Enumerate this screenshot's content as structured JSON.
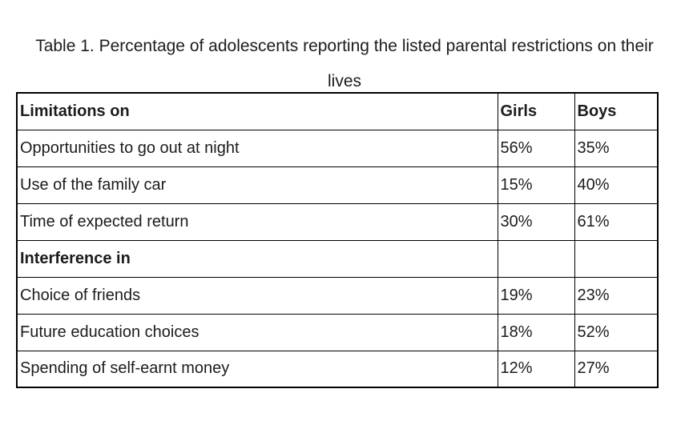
{
  "title": "Table 1. Percentage of adolescents reporting the listed parental restrictions on their lives",
  "table": {
    "headers": [
      "Limitations on",
      "Girls",
      "Boys"
    ],
    "rows": [
      {
        "label": "Opportunities to go out at night",
        "girls": "56%",
        "boys": "35%",
        "section": false
      },
      {
        "label": "Use of the family car",
        "girls": "15%",
        "boys": "40%",
        "section": false
      },
      {
        "label": "Time of expected return",
        "girls": "30%",
        "boys": "61%",
        "section": false
      },
      {
        "label": "Interference in",
        "girls": "",
        "boys": "",
        "section": true
      },
      {
        "label": "Choice of friends",
        "girls": "19%",
        "boys": "23%",
        "section": false
      },
      {
        "label": "Future education choices",
        "girls": "18%",
        "boys": "52%",
        "section": false
      },
      {
        "label": "Spending of self-earnt money",
        "girls": "12%",
        "boys": "27%",
        "section": false
      }
    ]
  },
  "chart_data": {
    "type": "table",
    "title": "Table 1. Percentage of adolescents reporting the listed parental restrictions on their lives",
    "columns": [
      "Limitations on",
      "Girls",
      "Boys"
    ],
    "rows": [
      [
        "Opportunities to go out at night",
        "56%",
        "35%"
      ],
      [
        "Use of the family car",
        "15%",
        "40%"
      ],
      [
        "Time of expected return",
        "30%",
        "61%"
      ],
      [
        "Interference in",
        "",
        ""
      ],
      [
        "Choice of friends",
        "19%",
        "23%"
      ],
      [
        "Future education choices",
        "18%",
        "52%"
      ],
      [
        "Spending of self-earnt money",
        "12%",
        "27%"
      ]
    ]
  }
}
